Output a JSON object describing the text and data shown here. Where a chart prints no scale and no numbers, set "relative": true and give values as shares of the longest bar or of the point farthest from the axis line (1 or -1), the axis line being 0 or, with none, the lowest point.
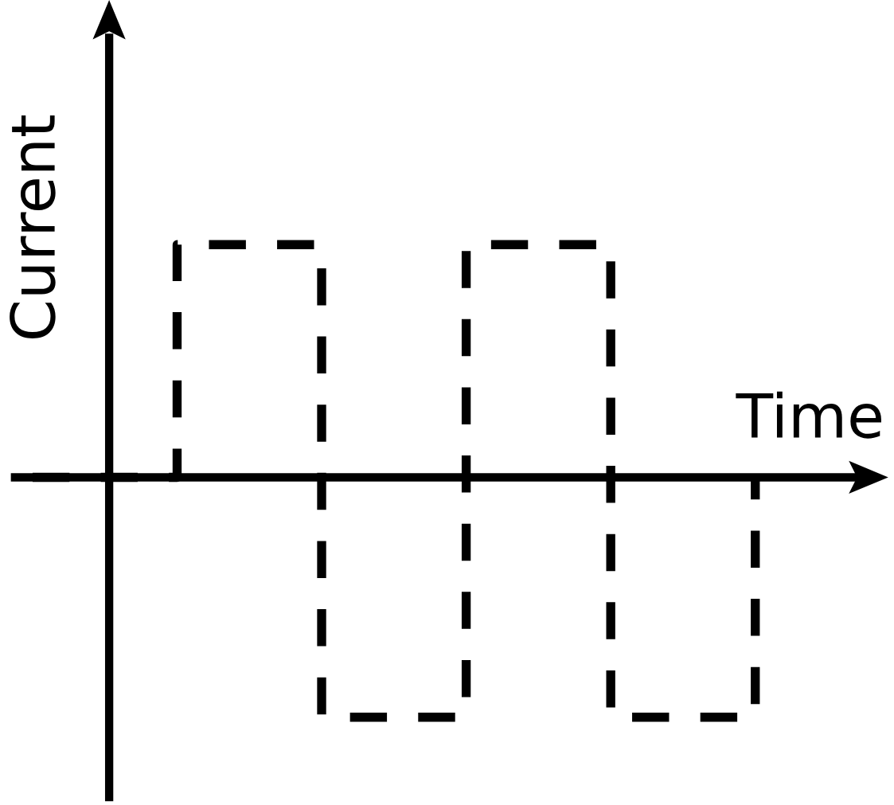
{
  "chart_data": {
    "type": "step",
    "relative": true,
    "xlabel": "Time",
    "ylabel": "Current",
    "line_style": "dashed",
    "color": "#000000",
    "categories": [
      null,
      null,
      null,
      null,
      null,
      null
    ],
    "values": [
      0,
      0.97,
      -1,
      0.97,
      -1,
      0
    ]
  }
}
